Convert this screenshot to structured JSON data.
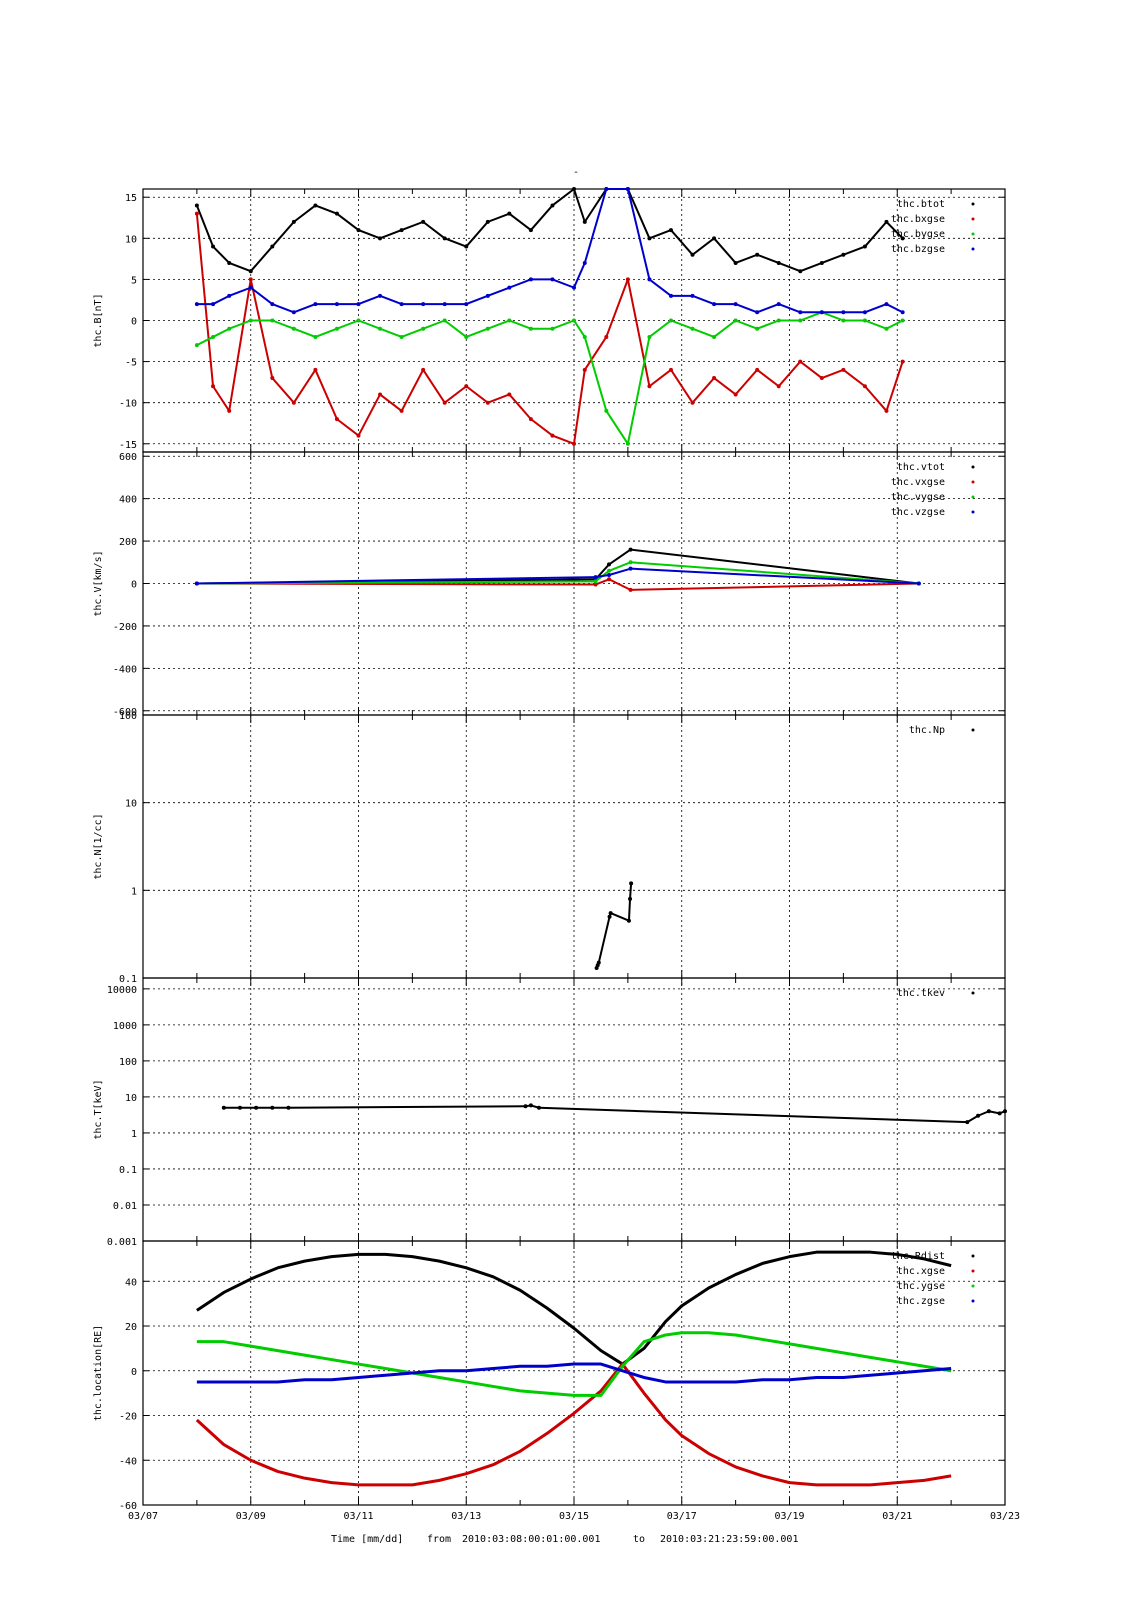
{
  "title": "-",
  "footer": {
    "xlabel": "Time [mm/dd]",
    "from_label": "from",
    "from_value": "2010:03:08:00:01:00.001",
    "to_label": "to",
    "to_value": "2010:03:21:23:59:00.001"
  },
  "chart_data": [
    {
      "type": "scatter",
      "ylabel": "thc.B[nT]",
      "ylim": [
        -16,
        16
      ],
      "yticks": [
        15,
        10,
        5,
        0,
        -5,
        -10,
        -15
      ],
      "grid": true,
      "legend_position": "top-right",
      "x_unit": "day of March 2010",
      "xlim": [
        7,
        23
      ],
      "series": [
        {
          "name": "thc.btot",
          "color": "#000000",
          "x": [
            8.0,
            8.3,
            8.6,
            9.0,
            9.4,
            9.8,
            10.2,
            10.6,
            11.0,
            11.4,
            11.8,
            12.2,
            12.6,
            13.0,
            13.4,
            13.8,
            14.2,
            14.6,
            15.0,
            15.2,
            15.6,
            16.0,
            16.4,
            16.8,
            17.2,
            17.6,
            18.0,
            18.4,
            18.8,
            19.2,
            19.6,
            20.0,
            20.4,
            20.8,
            21.1
          ],
          "y": [
            14,
            9,
            7,
            6,
            9,
            12,
            14,
            13,
            11,
            10,
            11,
            12,
            10,
            9,
            12,
            13,
            11,
            14,
            16,
            12,
            16,
            16,
            10,
            11,
            8,
            10,
            7,
            8,
            7,
            6,
            7,
            8,
            9,
            12,
            10
          ]
        },
        {
          "name": "thc.bxgse",
          "color": "#cc0000",
          "x": [
            8.0,
            8.3,
            8.6,
            9.0,
            9.4,
            9.8,
            10.2,
            10.6,
            11.0,
            11.4,
            11.8,
            12.2,
            12.6,
            13.0,
            13.4,
            13.8,
            14.2,
            14.6,
            15.0,
            15.2,
            15.6,
            16.0,
            16.4,
            16.8,
            17.2,
            17.6,
            18.0,
            18.4,
            18.8,
            19.2,
            19.6,
            20.0,
            20.4,
            20.8,
            21.1
          ],
          "y": [
            13,
            -8,
            -11,
            5,
            -7,
            -10,
            -6,
            -12,
            -14,
            -9,
            -11,
            -6,
            -10,
            -8,
            -10,
            -9,
            -12,
            -14,
            -15,
            -6,
            -2,
            5,
            -8,
            -6,
            -10,
            -7,
            -9,
            -6,
            -8,
            -5,
            -7,
            -6,
            -8,
            -11,
            -5
          ]
        },
        {
          "name": "thc.bygse",
          "color": "#00cc00",
          "x": [
            8.0,
            8.3,
            8.6,
            9.0,
            9.4,
            9.8,
            10.2,
            10.6,
            11.0,
            11.4,
            11.8,
            12.2,
            12.6,
            13.0,
            13.4,
            13.8,
            14.2,
            14.6,
            15.0,
            15.2,
            15.6,
            16.0,
            16.4,
            16.8,
            17.2,
            17.6,
            18.0,
            18.4,
            18.8,
            19.2,
            19.6,
            20.0,
            20.4,
            20.8,
            21.1
          ],
          "y": [
            -3,
            -2,
            -1,
            0,
            0,
            -1,
            -2,
            -1,
            0,
            -1,
            -2,
            -1,
            0,
            -2,
            -1,
            0,
            -1,
            -1,
            0,
            -2,
            -11,
            -15,
            -2,
            0,
            -1,
            -2,
            0,
            -1,
            0,
            0,
            1,
            0,
            0,
            -1,
            0
          ]
        },
        {
          "name": "thc.bzgse",
          "color": "#0000cc",
          "x": [
            8.0,
            8.3,
            8.6,
            9.0,
            9.4,
            9.8,
            10.2,
            10.6,
            11.0,
            11.4,
            11.8,
            12.2,
            12.6,
            13.0,
            13.4,
            13.8,
            14.2,
            14.6,
            15.0,
            15.2,
            15.6,
            16.0,
            16.4,
            16.8,
            17.2,
            17.6,
            18.0,
            18.4,
            18.8,
            19.2,
            19.6,
            20.0,
            20.4,
            20.8,
            21.1
          ],
          "y": [
            2,
            2,
            3,
            4,
            2,
            1,
            2,
            2,
            2,
            3,
            2,
            2,
            2,
            2,
            3,
            4,
            5,
            5,
            4,
            7,
            16,
            16,
            5,
            3,
            3,
            2,
            2,
            1,
            2,
            1,
            1,
            1,
            1,
            2,
            1
          ]
        }
      ]
    },
    {
      "type": "scatter",
      "ylabel": "thc.V[km/s]",
      "ylim": [
        -620,
        620
      ],
      "yticks": [
        600,
        400,
        200,
        0,
        -200,
        -400,
        -600
      ],
      "grid": true,
      "legend_position": "top-right",
      "x_unit": "day of March 2010",
      "xlim": [
        7,
        23
      ],
      "series": [
        {
          "name": "thc.vtot",
          "color": "#000000",
          "x": [
            8.0,
            15.4,
            15.65,
            16.05,
            21.4
          ],
          "y": [
            0,
            20,
            90,
            160,
            0
          ]
        },
        {
          "name": "thc.vxgse",
          "color": "#cc0000",
          "x": [
            8.0,
            15.4,
            15.65,
            16.05,
            21.4
          ],
          "y": [
            0,
            -5,
            20,
            -30,
            0
          ]
        },
        {
          "name": "thc.vygse",
          "color": "#00cc00",
          "x": [
            8.0,
            15.4,
            15.65,
            16.05,
            21.4
          ],
          "y": [
            0,
            10,
            60,
            100,
            0
          ]
        },
        {
          "name": "thc.vzgse",
          "color": "#0000cc",
          "x": [
            8.0,
            15.4,
            15.65,
            16.05,
            21.4
          ],
          "y": [
            0,
            30,
            40,
            70,
            0
          ]
        }
      ]
    },
    {
      "type": "scatter",
      "ylabel": "thc.N[1/cc]",
      "ylim": [
        0.1,
        100
      ],
      "yscale": "log",
      "yticks": [
        100,
        10,
        1,
        0.1
      ],
      "grid": true,
      "legend_position": "top-right",
      "x_unit": "day of March 2010",
      "xlim": [
        7,
        23
      ],
      "series": [
        {
          "name": "thc.Np",
          "color": "#000000",
          "x": [
            15.42,
            15.44,
            15.46,
            15.66,
            15.68,
            16.02,
            16.04,
            16.06
          ],
          "y": [
            0.13,
            0.14,
            0.15,
            0.5,
            0.55,
            0.45,
            0.8,
            1.2
          ]
        }
      ]
    },
    {
      "type": "scatter",
      "ylabel": "thc.T[keV]",
      "ylim": [
        0.001,
        20000
      ],
      "yscale": "log",
      "yticks": [
        10000,
        1000,
        100,
        10,
        1,
        0.1,
        0.01,
        0.001
      ],
      "grid": true,
      "legend_position": "top-right",
      "x_unit": "day of March 2010",
      "xlim": [
        7,
        23
      ],
      "series": [
        {
          "name": "thc.tkev",
          "color": "#000000",
          "x": [
            8.5,
            8.8,
            9.1,
            9.4,
            9.7,
            14.1,
            14.2,
            14.35,
            22.3,
            22.5,
            22.7,
            22.9,
            23.0
          ],
          "y": [
            5,
            5,
            5,
            5,
            5,
            5.5,
            5.8,
            5.0,
            2,
            3,
            4,
            3.5,
            4
          ]
        }
      ]
    },
    {
      "type": "line",
      "ylabel": "thc.location[RE]",
      "ylim": [
        -60,
        58
      ],
      "yticks": [
        40,
        20,
        0,
        -20,
        -40,
        -60
      ],
      "grid": true,
      "legend_position": "top-right",
      "x_unit": "day of March 2010",
      "xlim": [
        7,
        23
      ],
      "xticks": [
        "03/07",
        "03/09",
        "03/11",
        "03/13",
        "03/15",
        "03/17",
        "03/19",
        "03/21",
        "03/23"
      ],
      "series": [
        {
          "name": "thc.Rdist",
          "color": "#000000",
          "x": [
            8.0,
            8.5,
            9.0,
            9.5,
            10.0,
            10.5,
            11.0,
            11.5,
            12.0,
            12.5,
            13.0,
            13.5,
            14.0,
            14.5,
            15.0,
            15.5,
            15.9,
            16.3,
            16.7,
            17.0,
            17.5,
            18.0,
            18.5,
            19.0,
            19.5,
            20.0,
            20.5,
            21.0,
            21.5,
            22.0
          ],
          "y": [
            27,
            35,
            41,
            46,
            49,
            51,
            52,
            52,
            51,
            49,
            46,
            42,
            36,
            28,
            19,
            9,
            3,
            10,
            22,
            29,
            37,
            43,
            48,
            51,
            53,
            53,
            53,
            52,
            50,
            47
          ]
        },
        {
          "name": "thc.xgse",
          "color": "#cc0000",
          "x": [
            8.0,
            8.5,
            9.0,
            9.5,
            10.0,
            10.5,
            11.0,
            11.5,
            12.0,
            12.5,
            13.0,
            13.5,
            14.0,
            14.5,
            15.0,
            15.5,
            15.9,
            16.3,
            16.7,
            17.0,
            17.5,
            18.0,
            18.5,
            19.0,
            19.5,
            20.0,
            20.5,
            21.0,
            21.5,
            22.0
          ],
          "y": [
            -22,
            -33,
            -40,
            -45,
            -48,
            -50,
            -51,
            -51,
            -51,
            -49,
            -46,
            -42,
            -36,
            -28,
            -19,
            -9,
            3,
            -10,
            -22,
            -29,
            -37,
            -43,
            -47,
            -50,
            -51,
            -51,
            -51,
            -50,
            -49,
            -47
          ]
        },
        {
          "name": "thc.ygse",
          "color": "#00cc00",
          "x": [
            8.0,
            8.5,
            9.0,
            9.5,
            10.0,
            10.5,
            11.0,
            11.5,
            12.0,
            12.5,
            13.0,
            13.5,
            14.0,
            14.5,
            15.0,
            15.5,
            15.9,
            16.3,
            16.7,
            17.0,
            17.5,
            18.0,
            18.5,
            19.0,
            19.5,
            20.0,
            20.5,
            21.0,
            21.5,
            22.0
          ],
          "y": [
            13,
            13,
            11,
            9,
            7,
            5,
            3,
            1,
            -1,
            -3,
            -5,
            -7,
            -9,
            -10,
            -11,
            -11,
            2,
            13,
            16,
            17,
            17,
            16,
            14,
            12,
            10,
            8,
            6,
            4,
            2,
            0
          ]
        },
        {
          "name": "thc.zgse",
          "color": "#0000cc",
          "x": [
            8.0,
            8.5,
            9.0,
            9.5,
            10.0,
            10.5,
            11.0,
            11.5,
            12.0,
            12.5,
            13.0,
            13.5,
            14.0,
            14.5,
            15.0,
            15.5,
            15.9,
            16.3,
            16.7,
            17.0,
            17.5,
            18.0,
            18.5,
            19.0,
            19.5,
            20.0,
            20.5,
            21.0,
            21.5,
            22.0
          ],
          "y": [
            -5,
            -5,
            -5,
            -5,
            -4,
            -4,
            -3,
            -2,
            -1,
            0,
            0,
            1,
            2,
            2,
            3,
            3,
            0,
            -3,
            -5,
            -5,
            -5,
            -5,
            -4,
            -4,
            -3,
            -3,
            -2,
            -1,
            0,
            1
          ]
        }
      ]
    }
  ]
}
